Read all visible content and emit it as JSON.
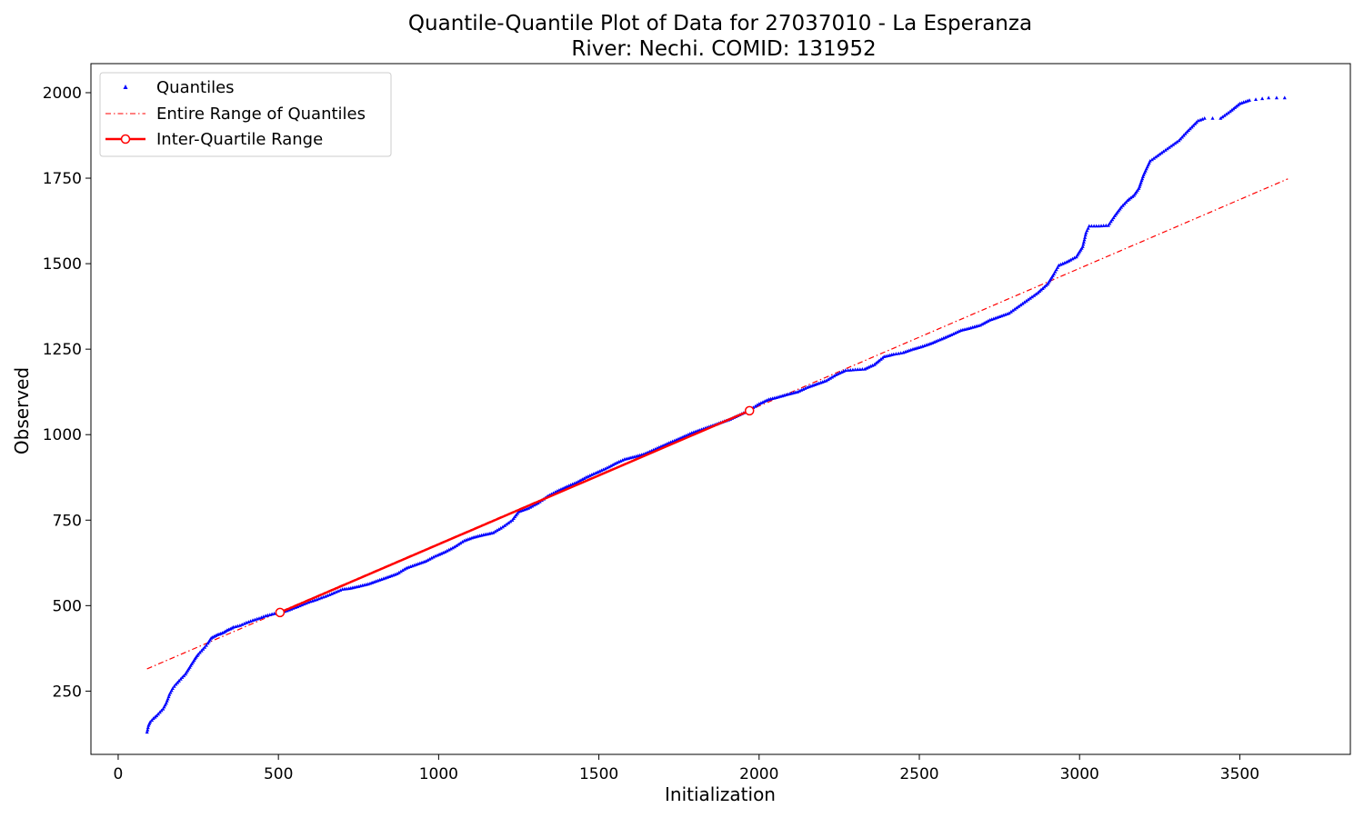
{
  "chart_data": {
    "type": "scatter",
    "title": "Quantile-Quantile Plot of Data for 27037010 - La Esperanza",
    "subtitle": "River: Nechi. COMID: 131952",
    "xlabel": "Initialization",
    "ylabel": "Observed",
    "xlim": [
      -85,
      3845
    ],
    "ylim": [
      65,
      2085
    ],
    "xticks": [
      0,
      500,
      1000,
      1500,
      2000,
      2500,
      3000,
      3500
    ],
    "yticks": [
      250,
      500,
      750,
      1000,
      1250,
      1500,
      1750,
      2000
    ],
    "grid": false,
    "legend_position": "top-left",
    "legend": [
      {
        "label": "Quantiles",
        "color": "#0000ff",
        "marker": "triangle-up"
      },
      {
        "label": "Entire Range of Quantiles",
        "color": "#ff0000",
        "style": "dash-dot"
      },
      {
        "label": "Inter-Quartile Range",
        "color": "#ff0000",
        "style": "solid",
        "marker": "open-circle"
      }
    ],
    "series": [
      {
        "name": "Quantiles",
        "color": "#0000ff",
        "points": [
          [
            90,
            130
          ],
          [
            95,
            150
          ],
          [
            100,
            160
          ],
          [
            110,
            170
          ],
          [
            120,
            178
          ],
          [
            130,
            188
          ],
          [
            140,
            198
          ],
          [
            150,
            215
          ],
          [
            160,
            240
          ],
          [
            170,
            258
          ],
          [
            180,
            270
          ],
          [
            190,
            280
          ],
          [
            200,
            290
          ],
          [
            210,
            300
          ],
          [
            220,
            315
          ],
          [
            230,
            330
          ],
          [
            240,
            345
          ],
          [
            250,
            358
          ],
          [
            260,
            368
          ],
          [
            270,
            378
          ],
          [
            280,
            390
          ],
          [
            290,
            405
          ],
          [
            300,
            410
          ],
          [
            310,
            415
          ],
          [
            320,
            418
          ],
          [
            330,
            422
          ],
          [
            340,
            428
          ],
          [
            350,
            432
          ],
          [
            360,
            437
          ],
          [
            380,
            442
          ],
          [
            400,
            450
          ],
          [
            420,
            457
          ],
          [
            440,
            463
          ],
          [
            460,
            470
          ],
          [
            480,
            475
          ],
          [
            500,
            479
          ],
          [
            520,
            483
          ],
          [
            540,
            490
          ],
          [
            560,
            497
          ],
          [
            580,
            505
          ],
          [
            600,
            512
          ],
          [
            620,
            518
          ],
          [
            640,
            525
          ],
          [
            660,
            532
          ],
          [
            680,
            540
          ],
          [
            700,
            548
          ],
          [
            720,
            550
          ],
          [
            750,
            556
          ],
          [
            780,
            563
          ],
          [
            810,
            573
          ],
          [
            840,
            583
          ],
          [
            870,
            593
          ],
          [
            900,
            610
          ],
          [
            930,
            620
          ],
          [
            960,
            630
          ],
          [
            990,
            645
          ],
          [
            1020,
            657
          ],
          [
            1050,
            672
          ],
          [
            1080,
            690
          ],
          [
            1110,
            700
          ],
          [
            1140,
            707
          ],
          [
            1170,
            713
          ],
          [
            1200,
            730
          ],
          [
            1230,
            750
          ],
          [
            1250,
            775
          ],
          [
            1280,
            785
          ],
          [
            1310,
            800
          ],
          [
            1340,
            820
          ],
          [
            1370,
            835
          ],
          [
            1400,
            848
          ],
          [
            1430,
            860
          ],
          [
            1460,
            875
          ],
          [
            1490,
            888
          ],
          [
            1520,
            900
          ],
          [
            1550,
            915
          ],
          [
            1580,
            928
          ],
          [
            1610,
            935
          ],
          [
            1640,
            943
          ],
          [
            1670,
            955
          ],
          [
            1700,
            968
          ],
          [
            1730,
            980
          ],
          [
            1760,
            992
          ],
          [
            1790,
            1005
          ],
          [
            1820,
            1015
          ],
          [
            1850,
            1025
          ],
          [
            1880,
            1035
          ],
          [
            1910,
            1045
          ],
          [
            1940,
            1058
          ],
          [
            1970,
            1072
          ],
          [
            2000,
            1090
          ],
          [
            2030,
            1103
          ],
          [
            2060,
            1110
          ],
          [
            2090,
            1118
          ],
          [
            2120,
            1125
          ],
          [
            2150,
            1138
          ],
          [
            2180,
            1148
          ],
          [
            2210,
            1158
          ],
          [
            2240,
            1175
          ],
          [
            2270,
            1188
          ],
          [
            2300,
            1190
          ],
          [
            2330,
            1192
          ],
          [
            2360,
            1205
          ],
          [
            2390,
            1228
          ],
          [
            2420,
            1235
          ],
          [
            2450,
            1240
          ],
          [
            2480,
            1250
          ],
          [
            2510,
            1258
          ],
          [
            2540,
            1268
          ],
          [
            2570,
            1280
          ],
          [
            2600,
            1292
          ],
          [
            2630,
            1305
          ],
          [
            2660,
            1312
          ],
          [
            2690,
            1320
          ],
          [
            2720,
            1335
          ],
          [
            2750,
            1345
          ],
          [
            2780,
            1355
          ],
          [
            2810,
            1375
          ],
          [
            2840,
            1395
          ],
          [
            2870,
            1415
          ],
          [
            2900,
            1440
          ],
          [
            2920,
            1470
          ],
          [
            2935,
            1495
          ],
          [
            2960,
            1505
          ],
          [
            2990,
            1520
          ],
          [
            3010,
            1550
          ],
          [
            3020,
            1590
          ],
          [
            3030,
            1610
          ],
          [
            3060,
            1610
          ],
          [
            3090,
            1612
          ],
          [
            3110,
            1640
          ],
          [
            3130,
            1665
          ],
          [
            3150,
            1685
          ],
          [
            3170,
            1700
          ],
          [
            3185,
            1720
          ],
          [
            3200,
            1760
          ],
          [
            3220,
            1800
          ],
          [
            3250,
            1820
          ],
          [
            3280,
            1840
          ],
          [
            3310,
            1860
          ],
          [
            3340,
            1890
          ],
          [
            3370,
            1918
          ],
          [
            3390,
            1925
          ],
          [
            3440,
            1925
          ],
          [
            3470,
            1945
          ],
          [
            3500,
            1968
          ],
          [
            3530,
            1978
          ],
          [
            3590,
            1985
          ],
          [
            3640,
            1985
          ]
        ]
      },
      {
        "name": "Entire Range of Quantiles",
        "color": "#ff0000",
        "points": [
          [
            90,
            315
          ],
          [
            3650,
            1748
          ]
        ]
      },
      {
        "name": "Inter-Quartile Range",
        "color": "#ff0000",
        "points": [
          [
            505,
            480
          ],
          [
            1970,
            1070
          ]
        ]
      }
    ]
  }
}
